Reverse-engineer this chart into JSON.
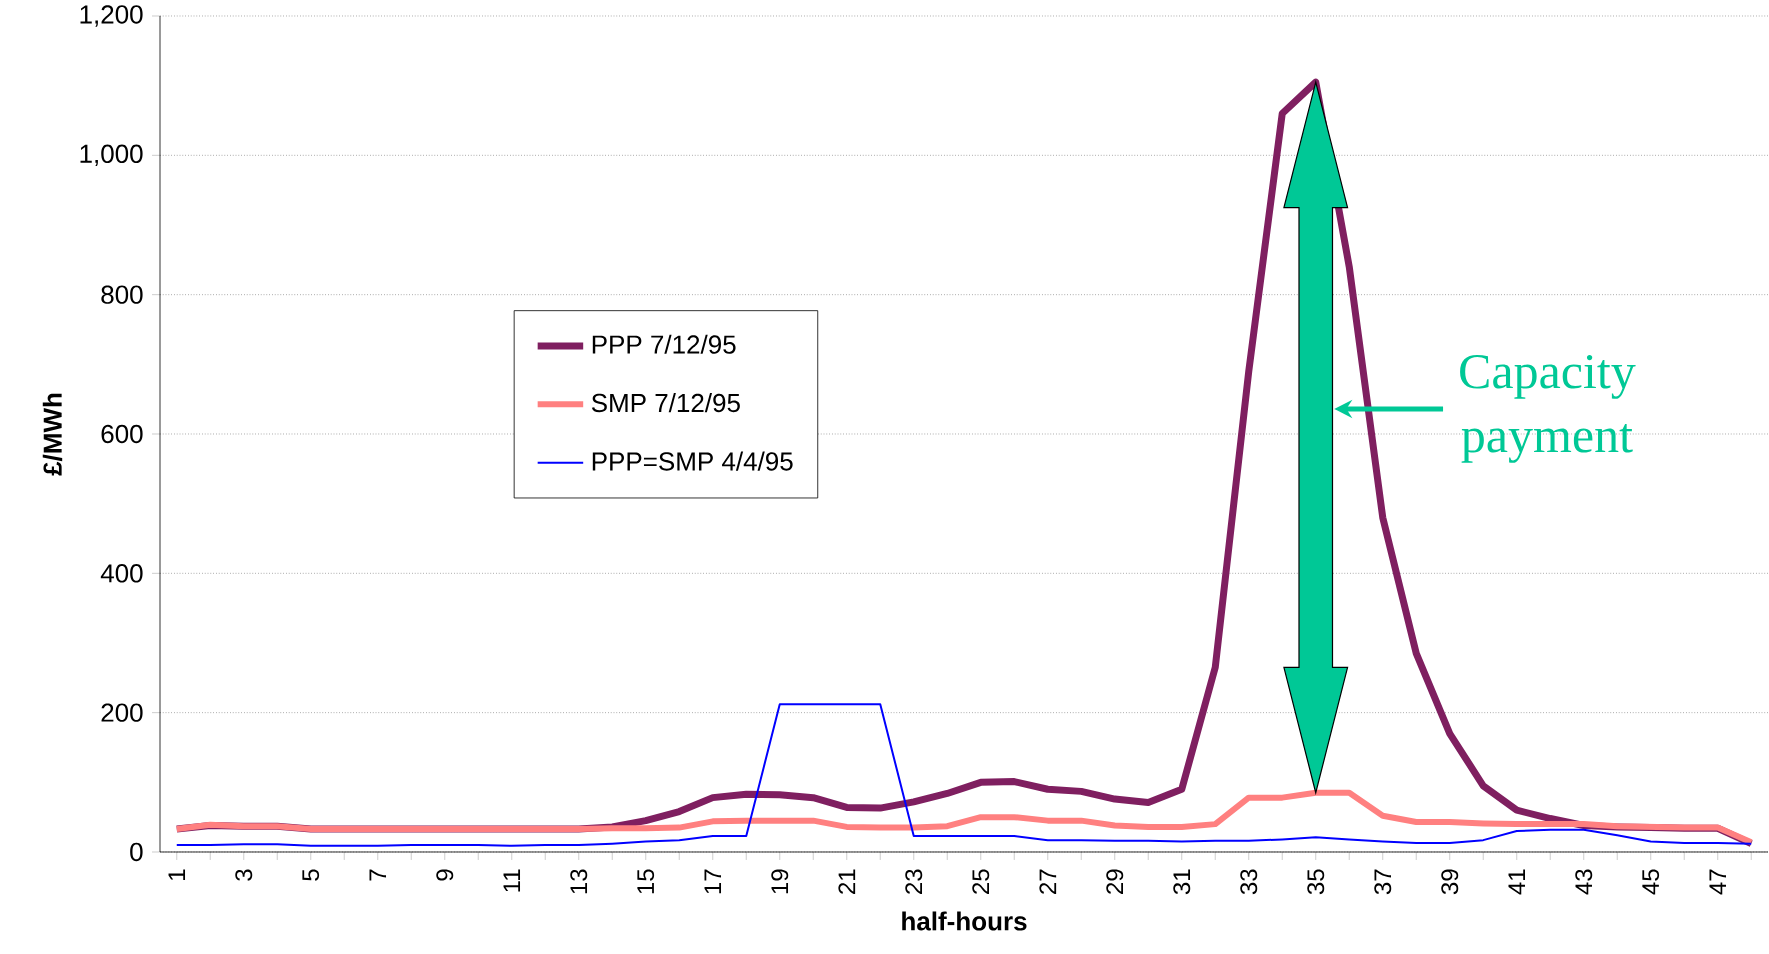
{
  "chart_data": {
    "type": "line",
    "xlabel": "half-hours",
    "ylabel": "£/MWh",
    "categories": [
      "1",
      null,
      "3",
      null,
      "5",
      null,
      "7",
      null,
      "9",
      null,
      "11",
      null,
      "13",
      null,
      "15",
      null,
      "17",
      null,
      "19",
      null,
      "21",
      null,
      "23",
      null,
      "25",
      null,
      "27",
      null,
      "29",
      null,
      "31",
      null,
      "33",
      null,
      "35",
      null,
      "37",
      null,
      "39",
      null,
      "41",
      null,
      "43",
      null,
      "45",
      null,
      "47",
      null
    ],
    "series": [
      {
        "name": "PPP 7/12/95",
        "color": "#7f1f60",
        "values": [
          33,
          38,
          37,
          37,
          33,
          33,
          33,
          33,
          33,
          33,
          33,
          33,
          33,
          36,
          45,
          58,
          78,
          83,
          82,
          78,
          64,
          63,
          72,
          84,
          100,
          101,
          90,
          87,
          76,
          71,
          90,
          265,
          690,
          1060,
          1105,
          840,
          480,
          285,
          170,
          95,
          60,
          48,
          38,
          36,
          35,
          34,
          34,
          12
        ]
      },
      {
        "name": "SMP 7/12/95",
        "color": "#ff8080",
        "values": [
          33,
          39,
          37,
          37,
          33,
          33,
          33,
          33,
          33,
          33,
          33,
          33,
          33,
          34,
          34,
          35,
          44,
          45,
          45,
          45,
          36,
          35,
          35,
          37,
          50,
          50,
          45,
          45,
          38,
          36,
          36,
          40,
          78,
          78,
          85,
          85,
          52,
          43,
          43,
          41,
          40,
          40,
          40,
          37,
          36,
          35,
          35,
          14
        ]
      },
      {
        "name": "PPP=SMP 4/4/95",
        "color": "#0000ff",
        "values": [
          10,
          10,
          11,
          11,
          9,
          9,
          9,
          10,
          10,
          10,
          9,
          10,
          10,
          12,
          15,
          17,
          23,
          23,
          212,
          212,
          212,
          212,
          23,
          23,
          23,
          23,
          17,
          17,
          16,
          16,
          15,
          16,
          16,
          18,
          21,
          18,
          15,
          13,
          13,
          17,
          30,
          32,
          32,
          24,
          15,
          13,
          13,
          12
        ]
      }
    ],
    "ylim": [
      0,
      1200
    ],
    "yticks": [
      0,
      200,
      400,
      600,
      800,
      {
        "value": 1000,
        "label": "1,000"
      },
      {
        "value": 1200,
        "label": "1,200"
      }
    ],
    "grid": "y",
    "legend": "center",
    "marker": "none",
    "line_style": "solid",
    "annotations": [
      "Capacity payment"
    ]
  }
}
